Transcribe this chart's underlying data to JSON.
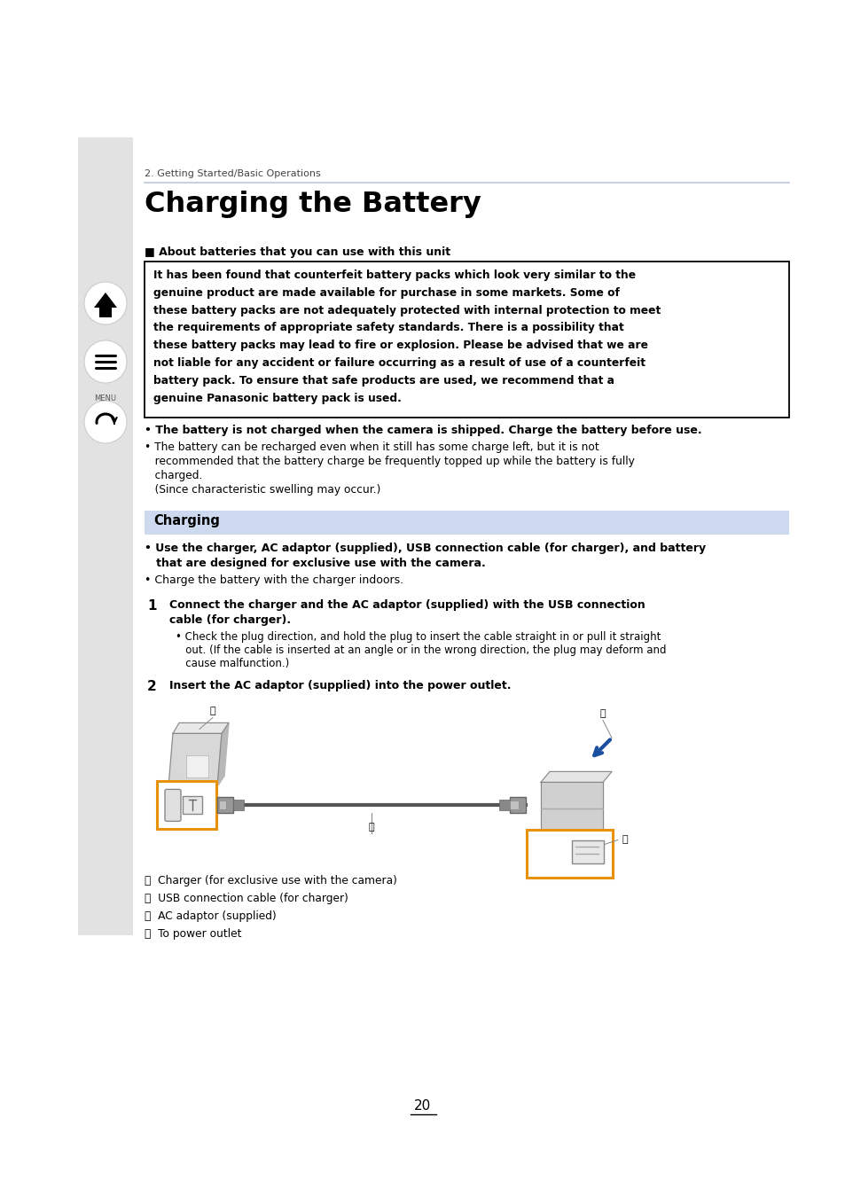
{
  "bg_color": "#ffffff",
  "sidebar_color": "#e2e2e2",
  "chapter_label": "2. Getting Started/Basic Operations",
  "title": "Charging the Battery",
  "section_about_label": "■ About batteries that you can use with this unit",
  "warning_lines": [
    "It has been found that counterfeit battery packs which look very similar to the",
    "genuine product are made available for purchase in some markets. Some of",
    "these battery packs are not adequately protected with internal protection to meet",
    "the requirements of appropriate safety standards. There is a possibility that",
    "these battery packs may lead to fire or explosion. Please be advised that we are",
    "not liable for any accident or failure occurring as a result of use of a counterfeit",
    "battery pack. To ensure that safe products are used, we recommend that a",
    "genuine Panasonic battery pack is used."
  ],
  "bullet1": "• The battery is not charged when the camera is shipped. Charge the battery before use.",
  "bullet2_lines": [
    "• The battery can be recharged even when it still has some charge left, but it is not",
    "   recommended that the battery charge be frequently topped up while the battery is fully",
    "   charged.",
    "   (Since characteristic swelling may occur.)"
  ],
  "charging_label": "Charging",
  "charging_bg": "#ccd9ee",
  "charge_b1_lines": [
    "• Use the charger, AC adaptor (supplied), USB connection cable (for charger), and battery",
    "   that are designed for exclusive use with the camera."
  ],
  "charge_b2": "• Charge the battery with the charger indoors.",
  "step1_lines": [
    "Connect the charger and the AC adaptor (supplied) with the USB connection",
    "cable (for charger)."
  ],
  "step1_sub_lines": [
    "• Check the plug direction, and hold the plug to insert the cable straight in or pull it straight",
    "   out. (If the cable is inserted at an angle or in the wrong direction, the plug may deform and",
    "   cause malfunction.)"
  ],
  "step2": "Insert the AC adaptor (supplied) into the power outlet.",
  "legend": [
    "Ⓐ  Charger (for exclusive use with the camera)",
    "Ⓑ  USB connection cable (for charger)",
    "Ⓒ  AC adaptor (supplied)",
    "Ⓓ  To power outlet"
  ],
  "page_num": "20",
  "orange": "#e8920a",
  "blue": "#1a4fa0",
  "line_color": "#b8c8dc",
  "text_dark": "#1a1a1a"
}
